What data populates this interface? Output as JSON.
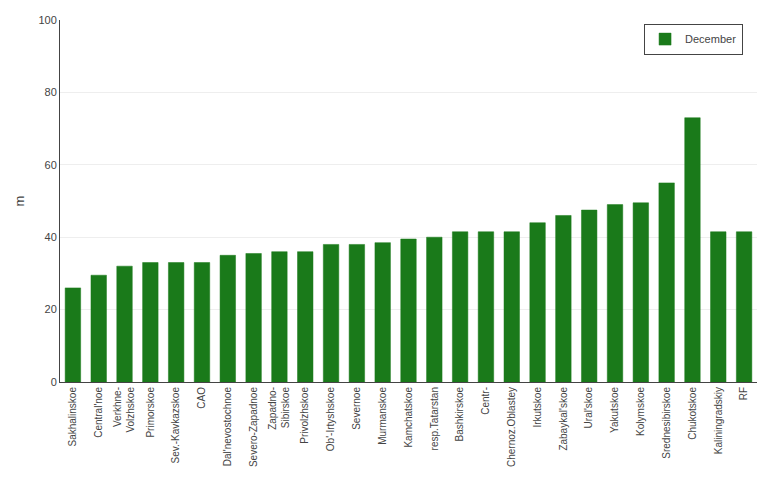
{
  "chart_data": {
    "type": "bar",
    "ylabel": "m",
    "categories": [
      "Sakhalinskoe",
      "Central'noe",
      "Verkhne-\nVolzhskoe",
      "Primorskoe",
      "Sev.-Kavkazskoe",
      "CAO",
      "Dal'nevostochnoe",
      "Severo-Zapadnoe",
      "Zapadno-\nSibirskoe",
      "Privolzhskoe",
      "Ob'-Irtyshskoe",
      "Severnoe",
      "Murmanskoe",
      "Kamchatskoe",
      "resp.Tatarstan",
      "Bashkirskoe",
      "Centr-",
      "Chernoz.Oblastey",
      "Irkutskoe",
      "Zabaykal'skoe",
      "Ural'skoe",
      "Yakutskoe",
      "Kolymskoe",
      "Srednesibirskoe",
      "Chukotskoe",
      "Kaliningradskiy",
      "RF"
    ],
    "series": [
      {
        "name": "December",
        "color": "#1a7a1a",
        "values": [
          26,
          29.5,
          32,
          33,
          33,
          33,
          35,
          35.5,
          36,
          36,
          38,
          38,
          38.5,
          39.5,
          40,
          41.5,
          41.5,
          41.5,
          44,
          46,
          47.5,
          49,
          49.5,
          55,
          73,
          41.5,
          41.5
        ]
      }
    ],
    "ylim": [
      0,
      100
    ],
    "yticks": [
      0,
      20,
      40,
      60,
      80,
      100
    ],
    "grid": true,
    "legend": "upper right"
  }
}
